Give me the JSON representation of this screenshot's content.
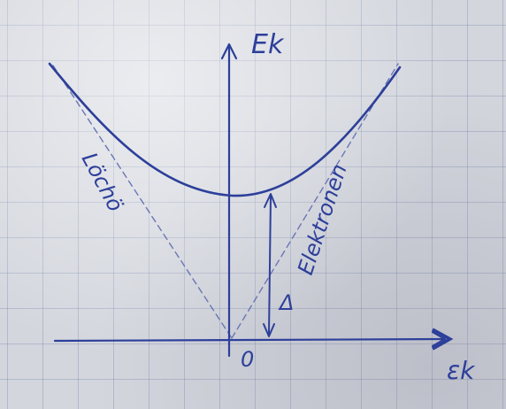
{
  "diagram": {
    "y_axis_label": "Ek",
    "x_axis_label": "εk",
    "origin_label": "0",
    "gap_label": "Δ",
    "holes_label": "Löchö",
    "electrons_label": "Elektronen",
    "ink_color": "#2d3f9a",
    "paper_color": "#d3d6dd"
  }
}
